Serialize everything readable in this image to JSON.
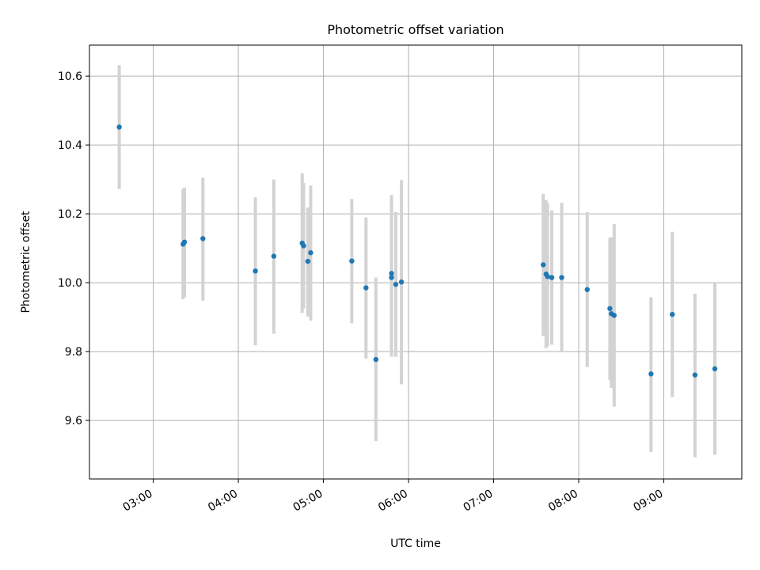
{
  "chart_data": {
    "type": "scatter",
    "title": "Photometric offset variation",
    "xlabel": "UTC time",
    "ylabel": "Photometric offset",
    "x_ticks": [
      "03:00",
      "04:00",
      "05:00",
      "06:00",
      "07:00",
      "08:00",
      "09:00"
    ],
    "y_ticks": [
      "9.6",
      "9.8",
      "10.0",
      "10.2",
      "10.4",
      "10.6"
    ],
    "xlim": [
      "02:15",
      "09:55"
    ],
    "ylim": [
      9.43,
      10.69
    ],
    "grid": true,
    "colors": {
      "point": "#1f77b4",
      "errorbar": "#d3d3d3",
      "grid": "#b0b0b0"
    },
    "points": [
      {
        "x": "02:36",
        "y": 10.452,
        "err_low": 10.272,
        "err_high": 10.632
      },
      {
        "x": "03:21",
        "y": 10.112,
        "err_low": 9.952,
        "err_high": 10.272
      },
      {
        "x": "03:22",
        "y": 10.118,
        "err_low": 9.958,
        "err_high": 10.276
      },
      {
        "x": "03:35",
        "y": 10.128,
        "err_low": 9.948,
        "err_high": 10.305
      },
      {
        "x": "04:12",
        "y": 10.034,
        "err_low": 9.818,
        "err_high": 10.248
      },
      {
        "x": "04:25",
        "y": 10.077,
        "err_low": 9.852,
        "err_high": 10.3
      },
      {
        "x": "04:45",
        "y": 10.115,
        "err_low": 9.912,
        "err_high": 10.318
      },
      {
        "x": "04:46",
        "y": 10.107,
        "err_low": 9.925,
        "err_high": 10.29
      },
      {
        "x": "04:49",
        "y": 10.062,
        "err_low": 9.902,
        "err_high": 10.218
      },
      {
        "x": "04:51",
        "y": 10.087,
        "err_low": 9.89,
        "err_high": 10.282
      },
      {
        "x": "05:20",
        "y": 10.063,
        "err_low": 9.882,
        "err_high": 10.243
      },
      {
        "x": "05:30",
        "y": 9.985,
        "err_low": 9.78,
        "err_high": 10.19
      },
      {
        "x": "05:37",
        "y": 9.777,
        "err_low": 9.54,
        "err_high": 10.015
      },
      {
        "x": "05:48",
        "y": 10.027,
        "err_low": 9.785,
        "err_high": 10.255
      },
      {
        "x": "05:48",
        "y": 10.015,
        "err_low": 9.79,
        "err_high": 10.24
      },
      {
        "x": "05:51",
        "y": 9.995,
        "err_low": 9.785,
        "err_high": 10.205
      },
      {
        "x": "05:55",
        "y": 10.002,
        "err_low": 9.705,
        "err_high": 10.298
      },
      {
        "x": "07:35",
        "y": 10.052,
        "err_low": 9.845,
        "err_high": 10.258
      },
      {
        "x": "07:37",
        "y": 10.025,
        "err_low": 9.81,
        "err_high": 10.24
      },
      {
        "x": "07:38",
        "y": 10.018,
        "err_low": 9.815,
        "err_high": 10.23
      },
      {
        "x": "07:41",
        "y": 10.015,
        "err_low": 9.82,
        "err_high": 10.21
      },
      {
        "x": "07:48",
        "y": 10.015,
        "err_low": 9.8,
        "err_high": 10.232
      },
      {
        "x": "08:06",
        "y": 9.98,
        "err_low": 9.755,
        "err_high": 10.205
      },
      {
        "x": "08:22",
        "y": 9.925,
        "err_low": 9.718,
        "err_high": 10.13
      },
      {
        "x": "08:23",
        "y": 9.91,
        "err_low": 9.695,
        "err_high": 10.132
      },
      {
        "x": "08:25",
        "y": 9.905,
        "err_low": 9.64,
        "err_high": 10.17
      },
      {
        "x": "08:51",
        "y": 9.735,
        "err_low": 9.508,
        "err_high": 9.958
      },
      {
        "x": "09:06",
        "y": 9.908,
        "err_low": 9.668,
        "err_high": 10.148
      },
      {
        "x": "09:22",
        "y": 9.732,
        "err_low": 9.493,
        "err_high": 9.968
      },
      {
        "x": "09:36",
        "y": 9.75,
        "err_low": 9.5,
        "err_high": 10.0
      }
    ]
  }
}
